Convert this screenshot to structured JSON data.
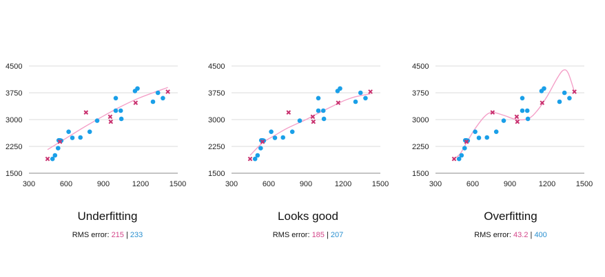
{
  "chart_data": [
    {
      "type": "scatter",
      "title": "Underfitting",
      "xlim": [
        300,
        1500
      ],
      "ylim": [
        1500,
        4500
      ],
      "xticks": [
        "300",
        "600",
        "900",
        "1200",
        "1500"
      ],
      "yticks": [
        "1500",
        "2250",
        "3000",
        "3750",
        "4500"
      ],
      "grid": true,
      "rms_label": "RMS error:",
      "rms_values": [
        "215",
        "233"
      ],
      "rms_separator": "|",
      "series": [
        {
          "color": "#1a9fe8",
          "marker": "circle",
          "points": [
            [
              490,
              1900
            ],
            [
              510,
              2000
            ],
            [
              535,
              2200
            ],
            [
              540,
              2420
            ],
            [
              550,
              2420
            ],
            [
              560,
              2410
            ],
            [
              620,
              2660
            ],
            [
              650,
              2490
            ],
            [
              715,
              2500
            ],
            [
              790,
              2660
            ],
            [
              850,
              2970
            ],
            [
              1000,
              3600
            ],
            [
              1000,
              3250
            ],
            [
              1040,
              3250
            ],
            [
              1045,
              3020
            ],
            [
              1155,
              3800
            ],
            [
              1175,
              3870
            ],
            [
              1300,
              3500
            ],
            [
              1340,
              3750
            ],
            [
              1380,
              3600
            ]
          ]
        },
        {
          "color": "#c8306e",
          "marker": "x",
          "points": [
            [
              450,
              1900
            ],
            [
              550,
              2380
            ],
            [
              760,
              3200
            ],
            [
              955,
              3080
            ],
            [
              960,
              2940
            ],
            [
              1160,
              3470
            ],
            [
              1420,
              3780
            ]
          ]
        },
        {
          "color": "#f4a0c8",
          "marker": "line",
          "points": [
            [
              450,
              2160
            ],
            [
              600,
              2480
            ],
            [
              750,
              2800
            ],
            [
              900,
              3100
            ],
            [
              1050,
              3380
            ],
            [
              1200,
              3620
            ],
            [
              1420,
              3900
            ]
          ]
        }
      ]
    },
    {
      "type": "scatter",
      "title": "Looks good",
      "xlim": [
        300,
        1500
      ],
      "ylim": [
        1500,
        4500
      ],
      "xticks": [
        "300",
        "600",
        "900",
        "1200",
        "1500"
      ],
      "yticks": [
        "1500",
        "2250",
        "3000",
        "3750",
        "4500"
      ],
      "grid": true,
      "rms_label": "RMS error:",
      "rms_values": [
        "185",
        "207"
      ],
      "rms_separator": "|",
      "series": [
        {
          "color": "#1a9fe8",
          "marker": "circle",
          "points": [
            [
              490,
              1900
            ],
            [
              510,
              2000
            ],
            [
              535,
              2200
            ],
            [
              540,
              2420
            ],
            [
              550,
              2420
            ],
            [
              560,
              2410
            ],
            [
              620,
              2660
            ],
            [
              650,
              2490
            ],
            [
              715,
              2500
            ],
            [
              790,
              2660
            ],
            [
              850,
              2970
            ],
            [
              1000,
              3600
            ],
            [
              1000,
              3250
            ],
            [
              1040,
              3250
            ],
            [
              1045,
              3020
            ],
            [
              1155,
              3800
            ],
            [
              1175,
              3870
            ],
            [
              1300,
              3500
            ],
            [
              1340,
              3750
            ],
            [
              1380,
              3600
            ]
          ]
        },
        {
          "color": "#c8306e",
          "marker": "x",
          "points": [
            [
              450,
              1900
            ],
            [
              550,
              2380
            ],
            [
              760,
              3200
            ],
            [
              955,
              3080
            ],
            [
              960,
              2940
            ],
            [
              1160,
              3470
            ],
            [
              1420,
              3780
            ]
          ]
        },
        {
          "color": "#f4a0c8",
          "marker": "line",
          "points": [
            [
              450,
              2000
            ],
            [
              550,
              2350
            ],
            [
              650,
              2560
            ],
            [
              750,
              2760
            ],
            [
              900,
              3000
            ],
            [
              1000,
              3180
            ],
            [
              1100,
              3350
            ],
            [
              1200,
              3520
            ],
            [
              1300,
              3640
            ],
            [
              1420,
              3720
            ]
          ]
        }
      ]
    },
    {
      "type": "scatter",
      "title": "Overfitting",
      "xlim": [
        300,
        1500
      ],
      "ylim": [
        1500,
        4500
      ],
      "xticks": [
        "300",
        "600",
        "900",
        "1200",
        "1500"
      ],
      "yticks": [
        "1500",
        "2250",
        "3000",
        "3750",
        "4500"
      ],
      "grid": true,
      "rms_label": "RMS error:",
      "rms_values": [
        "43.2",
        "400"
      ],
      "rms_separator": "|",
      "series": [
        {
          "color": "#1a9fe8",
          "marker": "circle",
          "points": [
            [
              490,
              1900
            ],
            [
              510,
              2000
            ],
            [
              535,
              2200
            ],
            [
              540,
              2420
            ],
            [
              550,
              2420
            ],
            [
              560,
              2410
            ],
            [
              620,
              2660
            ],
            [
              650,
              2490
            ],
            [
              715,
              2500
            ],
            [
              790,
              2660
            ],
            [
              850,
              2970
            ],
            [
              1000,
              3600
            ],
            [
              1000,
              3250
            ],
            [
              1040,
              3250
            ],
            [
              1045,
              3020
            ],
            [
              1155,
              3800
            ],
            [
              1175,
              3870
            ],
            [
              1300,
              3500
            ],
            [
              1340,
              3750
            ],
            [
              1380,
              3600
            ]
          ]
        },
        {
          "color": "#c8306e",
          "marker": "x",
          "points": [
            [
              450,
              1900
            ],
            [
              550,
              2380
            ],
            [
              760,
              3200
            ],
            [
              955,
              3080
            ],
            [
              960,
              2940
            ],
            [
              1160,
              3470
            ],
            [
              1420,
              3780
            ]
          ]
        },
        {
          "color": "#f4a0c8",
          "marker": "line",
          "points": [
            [
              450,
              1900
            ],
            [
              500,
              2050
            ],
            [
              550,
              2350
            ],
            [
              620,
              2750
            ],
            [
              700,
              3100
            ],
            [
              760,
              3200
            ],
            [
              850,
              3120
            ],
            [
              955,
              3000
            ],
            [
              1050,
              3030
            ],
            [
              1120,
              3250
            ],
            [
              1200,
              3650
            ],
            [
              1280,
              4150
            ],
            [
              1330,
              4380
            ],
            [
              1370,
              4300
            ],
            [
              1420,
              3780
            ]
          ]
        }
      ]
    }
  ]
}
